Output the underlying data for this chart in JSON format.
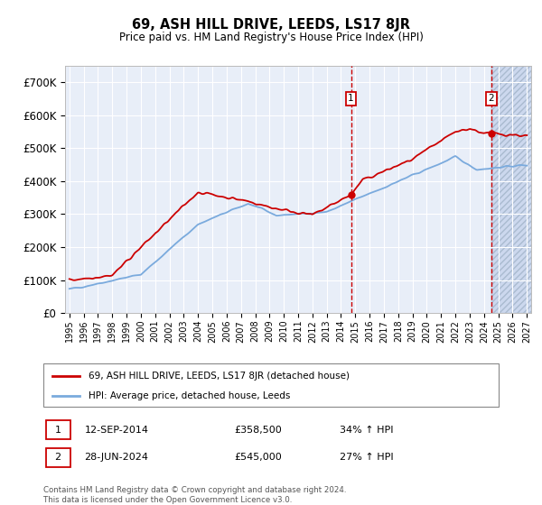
{
  "title": "69, ASH HILL DRIVE, LEEDS, LS17 8JR",
  "subtitle": "Price paid vs. HM Land Registry's House Price Index (HPI)",
  "ylim": [
    0,
    750000
  ],
  "yticks": [
    0,
    100000,
    200000,
    300000,
    400000,
    500000,
    600000,
    700000
  ],
  "ytick_labels": [
    "£0",
    "£100K",
    "£200K",
    "£300K",
    "£400K",
    "£500K",
    "£600K",
    "£700K"
  ],
  "x_start_year": 1995,
  "x_end_year": 2027,
  "hpi_color": "#7aaadd",
  "price_color": "#cc0000",
  "marker1_price": 358500,
  "marker2_price": 545000,
  "marker1_x": 2014.7,
  "marker2_x": 2024.5,
  "marker1_label": "12-SEP-2014",
  "marker2_label": "28-JUN-2024",
  "marker1_hpi_pct": "34% ↑ HPI",
  "marker2_hpi_pct": "27% ↑ HPI",
  "legend_line1": "69, ASH HILL DRIVE, LEEDS, LS17 8JR (detached house)",
  "legend_line2": "HPI: Average price, detached house, Leeds",
  "footer1": "Contains HM Land Registry data © Crown copyright and database right 2024.",
  "footer2": "This data is licensed under the Open Government Licence v3.0.",
  "plot_bg": "#e8eef8",
  "hatch_color": "#ccd8ee"
}
